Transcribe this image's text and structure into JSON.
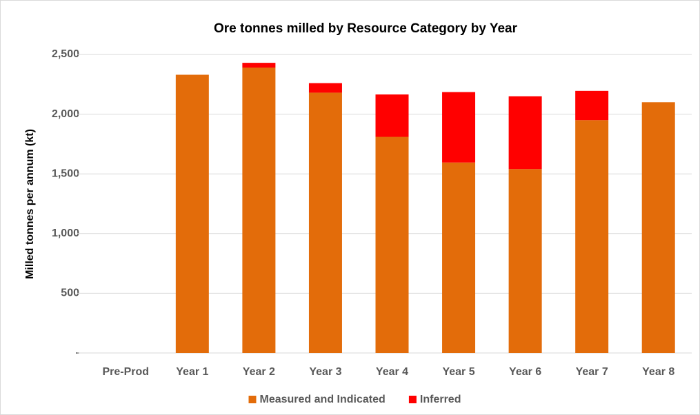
{
  "chart_data": {
    "type": "stacked_bar",
    "title": "Ore tonnes milled by Resource Category by Year",
    "y_label": "Milled tonnes per annum (kt)",
    "categories": [
      "Pre-Prod",
      "Year 1",
      "Year 2",
      "Year 3",
      "Year 4",
      "Year 5",
      "Year 6",
      "Year 7",
      "Year 8"
    ],
    "series": [
      {
        "name": "Measured and Indicated",
        "color": "#e36c0a",
        "values": [
          0,
          2330,
          2390,
          2180,
          1810,
          1595,
          1540,
          1950,
          2100
        ]
      },
      {
        "name": "Inferred",
        "color": "#ff0000",
        "values": [
          0,
          0,
          40,
          80,
          355,
          590,
          610,
          245,
          0
        ]
      }
    ],
    "ylim": [
      0,
      2500
    ],
    "yticks": [
      {
        "value": 0,
        "label": "-"
      },
      500,
      {
        "value": 1000,
        "label": "1,000"
      },
      {
        "value": 1500,
        "label": "1,500"
      },
      {
        "value": 2000,
        "label": "2,000"
      },
      {
        "value": 2500,
        "label": "2,500"
      }
    ],
    "grid": true,
    "legend": "bottom"
  }
}
